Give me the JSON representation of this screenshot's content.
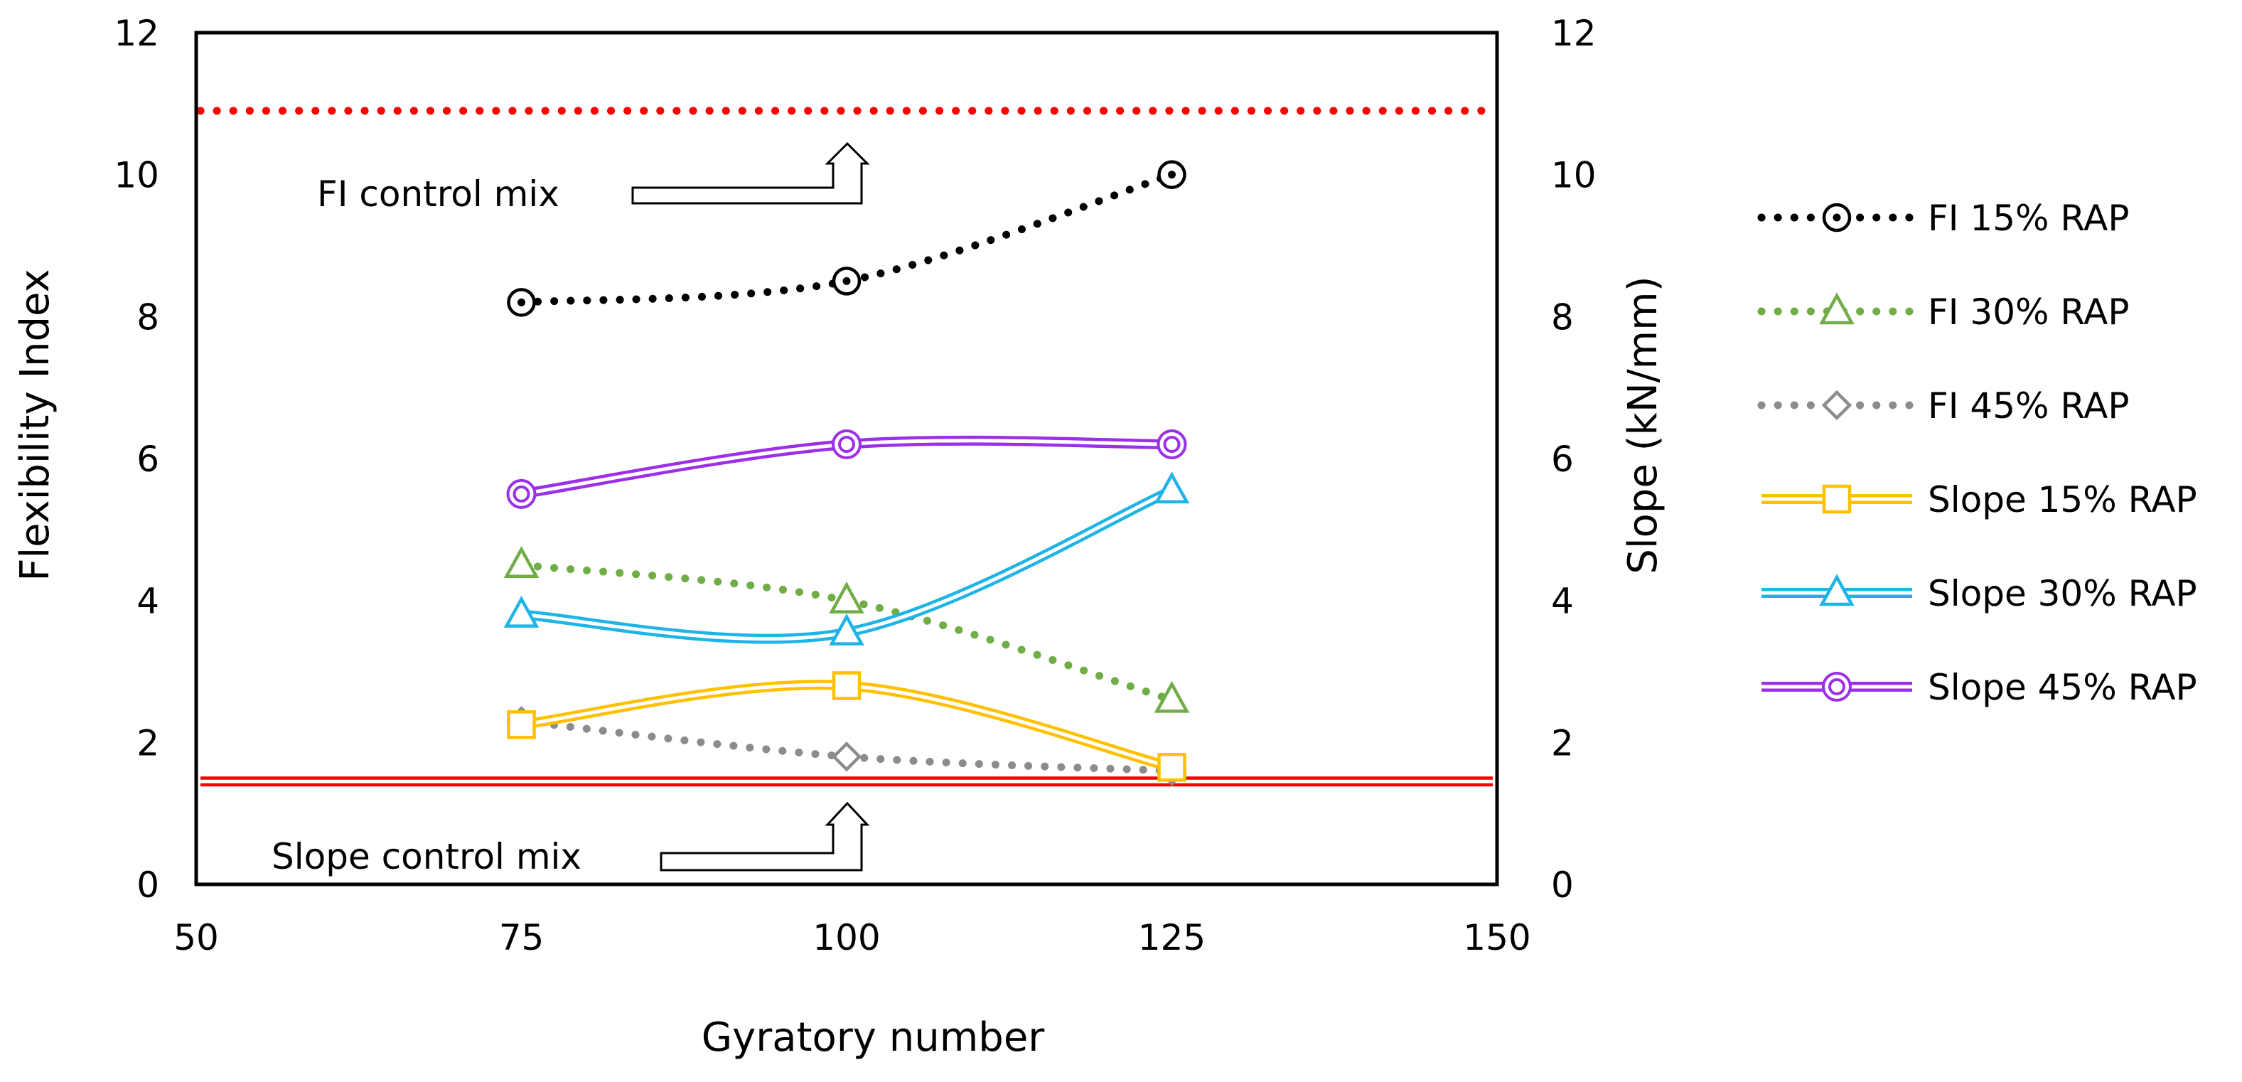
{
  "chart_data": {
    "type": "line",
    "xlabel": "Gyratory number",
    "ylabel": "Flexibility Index",
    "y2label": "Slope (kN/mm)",
    "xlim": [
      50,
      150
    ],
    "ylim": [
      0,
      12
    ],
    "y2lim": [
      0,
      12
    ],
    "xticks": [
      "50",
      "75",
      "100",
      "125",
      "150"
    ],
    "yticks": [
      "0",
      "2",
      "4",
      "6",
      "8",
      "10",
      "12"
    ],
    "y2ticks": [
      "0",
      "2",
      "4",
      "6",
      "8",
      "10",
      "12"
    ],
    "x": [
      75,
      100,
      125
    ],
    "series": [
      {
        "name": "FI 15% RAP",
        "values": [
          8.2,
          8.5,
          10.0
        ],
        "axis": "left",
        "color": "#000000",
        "style": "dotted",
        "marker": "circle-dot"
      },
      {
        "name": "FI 30% RAP",
        "values": [
          4.5,
          4.0,
          2.6
        ],
        "axis": "left",
        "color": "#70ad47",
        "style": "dotted",
        "marker": "triangle"
      },
      {
        "name": "FI 45% RAP",
        "values": [
          2.3,
          1.8,
          1.6
        ],
        "axis": "left",
        "color": "#8c8c8c",
        "style": "dotted",
        "marker": "diamond"
      },
      {
        "name": "Slope 15% RAP",
        "values": [
          2.25,
          2.8,
          1.65
        ],
        "axis": "right",
        "color": "#ffc000",
        "style": "double",
        "marker": "square"
      },
      {
        "name": "Slope 30% RAP",
        "values": [
          3.8,
          3.55,
          5.55
        ],
        "axis": "right",
        "color": "#1fb4e6",
        "style": "double",
        "marker": "triangle"
      },
      {
        "name": "Slope 45% RAP",
        "values": [
          5.5,
          6.2,
          6.2
        ],
        "axis": "right",
        "color": "#9b30e8",
        "style": "double",
        "marker": "double-circle"
      }
    ],
    "reference_lines": [
      {
        "name": "FI control mix",
        "value": 10.9,
        "axis": "left",
        "color": "#ff0000",
        "style": "dotted"
      },
      {
        "name": "Slope control mix",
        "value": 1.45,
        "axis": "right",
        "color": "#ff0000",
        "style": "double"
      }
    ],
    "annotations": [
      "FI control mix",
      "Slope control mix"
    ],
    "legend_position": "right"
  }
}
